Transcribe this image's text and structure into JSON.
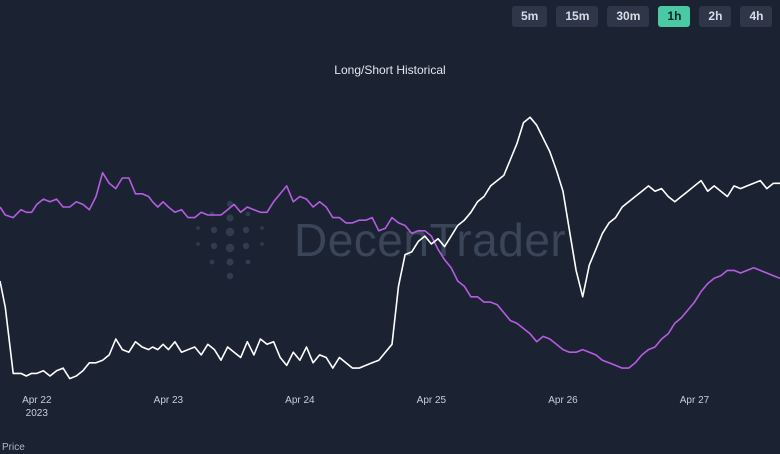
{
  "timeframes": [
    "5m",
    "15m",
    "30m",
    "1h",
    "2h",
    "4h"
  ],
  "active_timeframe": "1h",
  "watermark": {
    "part1": "Decen",
    "part2": "Trader"
  },
  "bottom_label": "Price",
  "colors": {
    "background": "#1b2333",
    "long_short": "#b55ce0",
    "price": "#ffffff",
    "active_button": "#49c9a4"
  },
  "chart_data": {
    "type": "line",
    "title": "Long/Short Historical",
    "x_ticks": [
      "Apr 22",
      "Apr 23",
      "Apr 24",
      "Apr 25",
      "Apr 26",
      "Apr 27"
    ],
    "x_tick_sublabel": "2023",
    "x_range": [
      21.72,
      27.65
    ],
    "y_range": [
      0,
      100
    ],
    "series": [
      {
        "color": "#b55ce0",
        "x": [
          21.72,
          21.76,
          21.82,
          21.88,
          21.92,
          21.96,
          22.0,
          22.05,
          22.1,
          22.15,
          22.2,
          22.25,
          22.3,
          22.35,
          22.4,
          22.45,
          22.5,
          22.55,
          22.6,
          22.65,
          22.7,
          22.75,
          22.8,
          22.85,
          22.88,
          22.92,
          22.96,
          23.0,
          23.05,
          23.1,
          23.15,
          23.2,
          23.25,
          23.3,
          23.35,
          23.4,
          23.45,
          23.5,
          23.55,
          23.6,
          23.65,
          23.7,
          23.75,
          23.8,
          23.85,
          23.9,
          23.95,
          24.0,
          24.05,
          24.1,
          24.15,
          24.2,
          24.25,
          24.3,
          24.35,
          24.4,
          24.45,
          24.5,
          24.55,
          24.6,
          24.65,
          24.7,
          24.75,
          24.8,
          24.85,
          24.9,
          24.95,
          25.0,
          25.05,
          25.1,
          25.15,
          25.2,
          25.25,
          25.3,
          25.35,
          25.4,
          25.45,
          25.5,
          25.55,
          25.6,
          25.65,
          25.7,
          25.75,
          25.8,
          25.85,
          25.9,
          25.95,
          26.0,
          26.05,
          26.1,
          26.15,
          26.2,
          26.25,
          26.3,
          26.35,
          26.4,
          26.45,
          26.5,
          26.55,
          26.6,
          26.65,
          26.7,
          26.75,
          26.8,
          26.85,
          26.9,
          26.95,
          27.0,
          27.05,
          27.1,
          27.15,
          27.2,
          27.25,
          27.3,
          27.35,
          27.4,
          27.45,
          27.5,
          27.55,
          27.6,
          27.65
        ],
        "values": [
          64,
          61,
          60,
          63,
          62,
          62,
          65,
          67,
          66,
          67,
          64,
          64,
          66,
          65,
          63,
          68,
          77,
          73,
          71,
          75,
          75,
          69,
          69,
          68,
          66,
          64,
          66,
          64,
          62,
          63,
          60,
          60,
          62,
          61,
          61,
          61,
          63,
          65,
          62,
          64,
          63,
          62,
          62,
          66,
          69,
          72,
          66,
          68,
          67,
          64,
          66,
          64,
          60,
          60,
          58,
          58,
          59,
          59,
          60,
          55,
          56,
          60,
          58,
          57,
          54,
          55,
          55,
          53,
          48,
          44,
          41,
          36,
          34,
          30,
          30,
          28,
          28,
          27,
          24,
          21,
          20,
          18,
          16,
          13,
          15,
          14,
          12,
          10,
          9,
          9,
          10,
          9,
          8,
          6,
          5,
          4,
          3,
          3,
          5,
          8,
          10,
          11,
          14,
          16,
          20,
          22,
          25,
          28,
          32,
          35,
          37,
          38,
          40,
          40,
          39,
          40,
          41,
          40,
          39,
          38,
          37
        ]
      },
      {
        "color": "#ffffff",
        "x": [
          21.72,
          21.76,
          21.82,
          21.88,
          21.92,
          21.96,
          22.0,
          22.05,
          22.1,
          22.15,
          22.2,
          22.25,
          22.3,
          22.35,
          22.4,
          22.45,
          22.5,
          22.55,
          22.6,
          22.65,
          22.7,
          22.75,
          22.8,
          22.85,
          22.88,
          22.92,
          22.96,
          23.0,
          23.05,
          23.1,
          23.15,
          23.2,
          23.25,
          23.3,
          23.35,
          23.4,
          23.45,
          23.5,
          23.55,
          23.6,
          23.65,
          23.7,
          23.75,
          23.8,
          23.85,
          23.9,
          23.95,
          24.0,
          24.05,
          24.1,
          24.15,
          24.2,
          24.25,
          24.3,
          24.35,
          24.4,
          24.45,
          24.5,
          24.55,
          24.6,
          24.65,
          24.7,
          24.75,
          24.8,
          24.85,
          24.9,
          24.95,
          25.0,
          25.05,
          25.1,
          25.15,
          25.2,
          25.25,
          25.3,
          25.35,
          25.4,
          25.45,
          25.5,
          25.55,
          25.6,
          25.65,
          25.7,
          25.75,
          25.8,
          25.85,
          25.9,
          25.95,
          26.0,
          26.05,
          26.1,
          26.15,
          26.2,
          26.25,
          26.3,
          26.35,
          26.4,
          26.45,
          26.5,
          26.55,
          26.6,
          26.65,
          26.7,
          26.75,
          26.8,
          26.85,
          26.9,
          26.95,
          27.0,
          27.05,
          27.1,
          27.15,
          27.2,
          27.25,
          27.3,
          27.35,
          27.4,
          27.45,
          27.5,
          27.55,
          27.6,
          27.65
        ],
        "values": [
          36,
          26,
          1,
          1,
          0,
          1,
          1,
          2,
          0,
          2,
          3,
          -1,
          0,
          2,
          5,
          5,
          6,
          8,
          14,
          10,
          9,
          13,
          11,
          10,
          11,
          10,
          12,
          10,
          13,
          9,
          10,
          11,
          8,
          12,
          10,
          6,
          11,
          9,
          7,
          13,
          8,
          14,
          12,
          13,
          7,
          4,
          9,
          6,
          11,
          5,
          8,
          7,
          3,
          7,
          5,
          3,
          3,
          4,
          5,
          6,
          9,
          12,
          34,
          46,
          47,
          51,
          53,
          50,
          52,
          49,
          53,
          57,
          59,
          62,
          66,
          68,
          72,
          74,
          76,
          82,
          88,
          96,
          98,
          95,
          90,
          85,
          78,
          70,
          55,
          40,
          30,
          42,
          48,
          54,
          58,
          60,
          64,
          66,
          68,
          70,
          72,
          70,
          71,
          68,
          66,
          68,
          70,
          72,
          74,
          70,
          72,
          70,
          68,
          72,
          71,
          72,
          73,
          74,
          71,
          73,
          73
        ]
      }
    ]
  }
}
